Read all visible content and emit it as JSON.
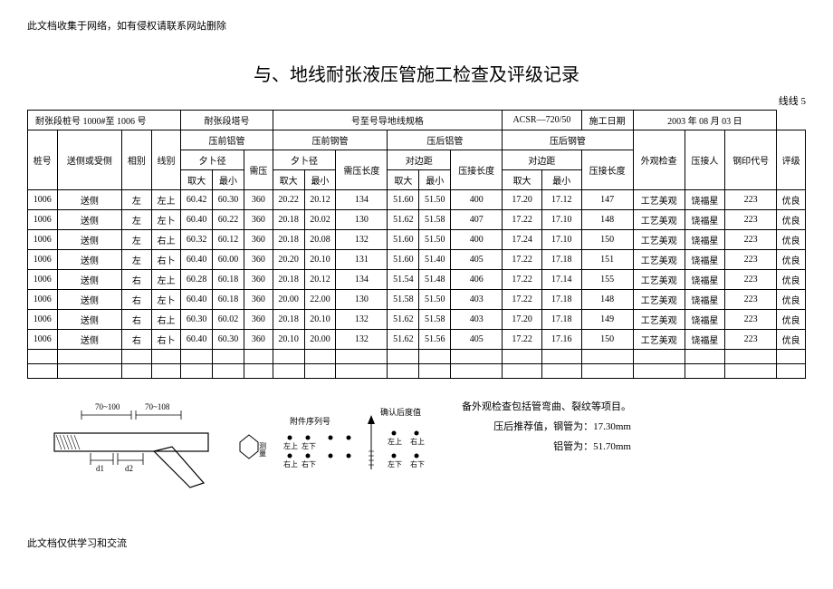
{
  "topNote": "此文档收集于网络，如有侵权请联系网站删除",
  "title": "与、地线耐张液压管施工检查及评级记录",
  "line5": "线线 5",
  "header": {
    "pileLabel": "耐张段桩号",
    "pileValue": "1000#至 1006 号",
    "towerLabel": "耐张段塔号",
    "specLabel": "号至号导地线规格",
    "acsrLabel": "ACSR—720/50",
    "dateLabel": "施工日期",
    "dateValue": "2003 年 08 月 03 日"
  },
  "columns": {
    "pile": "桩号",
    "side": "送侧或受侧",
    "phase": "相别",
    "lineType": "线别",
    "preAl": "压前铝管",
    "preSteel": "压前钢管",
    "postAl": "压后铝管",
    "postSteel": "压后钢管",
    "outerDia": "夕卜径",
    "needPress": "需压",
    "needPressLen": "需压长度",
    "opposite": "对边距",
    "pressLen": "压接长度",
    "max": "取大",
    "min": "最小",
    "appearance": "外观检查",
    "presser": "压接人",
    "stamp": "钢印代号",
    "grade": "评级"
  },
  "rows": [
    {
      "pile": "1006",
      "side": "送侧",
      "phase": "左",
      "line": "左上",
      "a1": "60.42",
      "a2": "60.30",
      "a3": "360",
      "b1": "20.22",
      "b2": "20.12",
      "b3": "134",
      "c1": "51.60",
      "c2": "51.50",
      "c3": "400",
      "d1": "17.20",
      "d2": "17.12",
      "d3": "147",
      "app": "工艺美观",
      "person": "饶福星",
      "stamp": "223",
      "grade": "优良"
    },
    {
      "pile": "1006",
      "side": "送侧",
      "phase": "左",
      "line": "左卜",
      "a1": "60.40",
      "a2": "60.22",
      "a3": "360",
      "b1": "20.18",
      "b2": "20.02",
      "b3": "130",
      "c1": "51.62",
      "c2": "51.58",
      "c3": "407",
      "d1": "17.22",
      "d2": "17.10",
      "d3": "148",
      "app": "工艺美观",
      "person": "饶福星",
      "stamp": "223",
      "grade": "优良"
    },
    {
      "pile": "1006",
      "side": "送侧",
      "phase": "左",
      "line": "右上",
      "a1": "60.32",
      "a2": "60.12",
      "a3": "360",
      "b1": "20.18",
      "b2": "20.08",
      "b3": "132",
      "c1": "51.60",
      "c2": "51.50",
      "c3": "400",
      "d1": "17.24",
      "d2": "17.10",
      "d3": "150",
      "app": "工艺美观",
      "person": "饶福星",
      "stamp": "223",
      "grade": "优良"
    },
    {
      "pile": "1006",
      "side": "送侧",
      "phase": "左",
      "line": "右卜",
      "a1": "60.40",
      "a2": "60.00",
      "a3": "360",
      "b1": "20.20",
      "b2": "20.10",
      "b3": "131",
      "c1": "51.60",
      "c2": "51.40",
      "c3": "405",
      "d1": "17.22",
      "d2": "17.18",
      "d3": "151",
      "app": "工艺美观",
      "person": "饶福星",
      "stamp": "223",
      "grade": "优良"
    },
    {
      "pile": "1006",
      "side": "送侧",
      "phase": "右",
      "line": "左上",
      "a1": "60.28",
      "a2": "60.18",
      "a3": "360",
      "b1": "20.18",
      "b2": "20.12",
      "b3": "134",
      "c1": "51.54",
      "c2": "51.48",
      "c3": "406",
      "d1": "17.22",
      "d2": "17.14",
      "d3": "155",
      "app": "工艺美观",
      "person": "饶福星",
      "stamp": "223",
      "grade": "优良"
    },
    {
      "pile": "1006",
      "side": "送侧",
      "phase": "右",
      "line": "左卜",
      "a1": "60.40",
      "a2": "60.18",
      "a3": "360",
      "b1": "20.00",
      "b2": "22.00",
      "b3": "130",
      "c1": "51.58",
      "c2": "51.50",
      "c3": "403",
      "d1": "17.22",
      "d2": "17.18",
      "d3": "148",
      "app": "工艺美观",
      "person": "饶福星",
      "stamp": "223",
      "grade": "优良"
    },
    {
      "pile": "1006",
      "side": "送侧",
      "phase": "右",
      "line": "右上",
      "a1": "60.30",
      "a2": "60.02",
      "a3": "360",
      "b1": "20.18",
      "b2": "20.10",
      "b3": "132",
      "c1": "51.62",
      "c2": "51.58",
      "c3": "403",
      "d1": "17.20",
      "d2": "17.18",
      "d3": "149",
      "app": "工艺美观",
      "person": "饶福星",
      "stamp": "223",
      "grade": "优良"
    },
    {
      "pile": "1006",
      "side": "送侧",
      "phase": "右",
      "line": "右卜",
      "a1": "60.40",
      "a2": "60.30",
      "a3": "360",
      "b1": "20.10",
      "b2": "20.00",
      "b3": "132",
      "c1": "51.62",
      "c2": "51.56",
      "c3": "405",
      "d1": "17.22",
      "d2": "17.16",
      "d3": "150",
      "app": "工艺美观",
      "person": "饶福星",
      "stamp": "223",
      "grade": "优良"
    }
  ],
  "diagram": {
    "dim1": "70~100",
    "dim2": "70~108",
    "d1": "d1",
    "d2": "d2",
    "brand": "附件序列号",
    "after": "确认后度值",
    "zs": "左上",
    "zx": "左下",
    "ys": "右上",
    "yx": "右下"
  },
  "notes": {
    "n1": "备外观检查包括管弯曲、裂纹等项目。",
    "n2": "压后推荐值，钢管为：17.30mm",
    "n3": "铝管为：51.70mm"
  },
  "footerNote": "此文档仅供学习和交流"
}
